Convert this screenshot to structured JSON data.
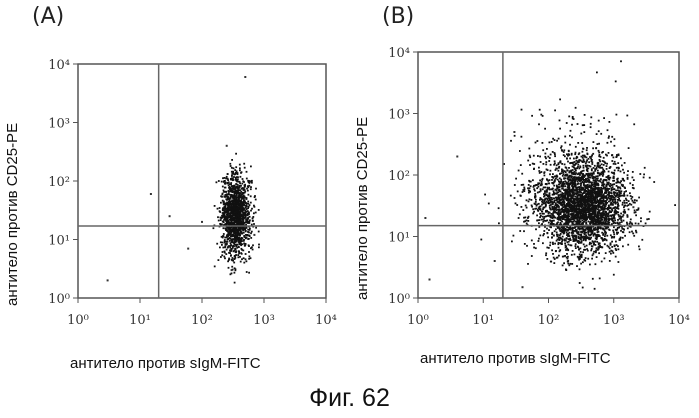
{
  "caption": "Фиг. 62",
  "chart_data": [
    {
      "type": "scatter",
      "panel_label": "(A)",
      "title": "",
      "xlabel": "антитело против sIgM-FITC",
      "ylabel": "антитело против CD25-PE",
      "xscale": "log",
      "yscale": "log",
      "xlim": [
        1,
        10000
      ],
      "ylim": [
        1,
        10000
      ],
      "x_tick_labels": [
        "10⁰",
        "10¹",
        "10²",
        "10³",
        "10⁴"
      ],
      "y_tick_labels": [
        "10⁰",
        "10¹",
        "10²",
        "10³",
        "10⁴"
      ],
      "gate_x": 20,
      "gate_y": 17,
      "clusters": [
        {
          "name": "main population",
          "center_x": 350,
          "center_y": 25,
          "spread_log_x": 0.12,
          "spread_log_y": 0.35,
          "points": 1400
        }
      ],
      "outliers": [
        [
          15,
          60
        ],
        [
          60,
          7
        ],
        [
          300,
          3
        ],
        [
          500,
          6000
        ],
        [
          250,
          400
        ],
        [
          3,
          2
        ],
        [
          100,
          20
        ],
        [
          30,
          25
        ],
        [
          700,
          12
        ]
      ]
    },
    {
      "type": "scatter",
      "panel_label": "(B)",
      "title": "",
      "xlabel": "антитело против sIgM-FITC",
      "ylabel": "антитело против CD25-PE",
      "xscale": "log",
      "yscale": "log",
      "xlim": [
        1,
        10000
      ],
      "ylim": [
        1,
        10000
      ],
      "x_tick_labels": [
        "10⁰",
        "10¹",
        "10²",
        "10³",
        "10⁴"
      ],
      "y_tick_labels": [
        "10⁰",
        "10¹",
        "10²",
        "10³",
        "10⁴"
      ],
      "gate_x": 20,
      "gate_y": 15,
      "clusters": [
        {
          "name": "main population",
          "center_x": 350,
          "center_y": 30,
          "spread_log_x": 0.32,
          "spread_log_y": 0.35,
          "points": 2600
        },
        {
          "name": "diffuse halo",
          "center_x": 250,
          "center_y": 60,
          "spread_log_x": 0.45,
          "spread_log_y": 0.55,
          "points": 700
        }
      ],
      "outliers": [
        [
          40,
          1.5
        ],
        [
          15,
          4
        ],
        [
          1.5,
          2
        ],
        [
          1.3,
          20
        ],
        [
          4,
          200
        ],
        [
          30,
          500
        ],
        [
          2000,
          30
        ]
      ]
    }
  ]
}
